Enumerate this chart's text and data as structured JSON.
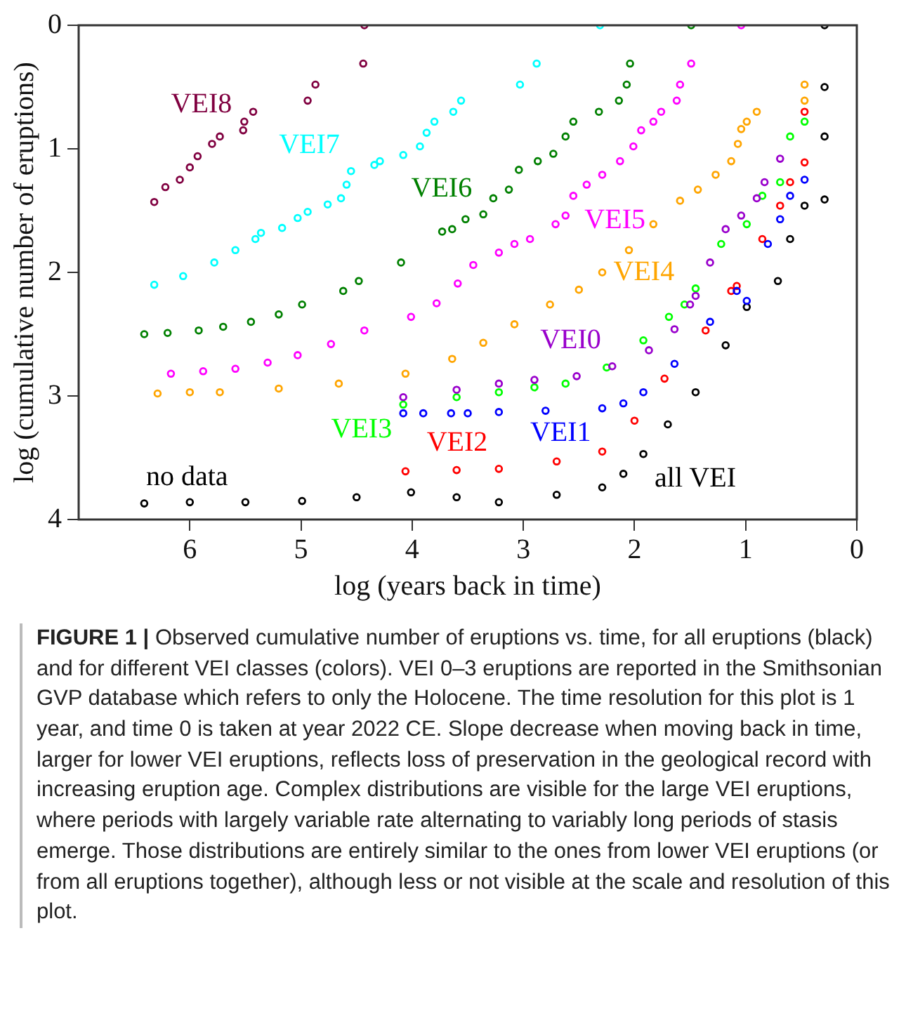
{
  "chart_data": {
    "type": "scatter",
    "title": "FIGURE 1 |",
    "xlabel": "log (years back in time)",
    "ylabel": "log (cumulative number of eruptions)",
    "xlim": [
      7,
      0
    ],
    "xticks": [
      6,
      5,
      4,
      3,
      2,
      1,
      0
    ],
    "ylim": [
      4,
      0
    ],
    "yticks": [
      0,
      1,
      2,
      3,
      4
    ],
    "grid": false,
    "legend": false,
    "marker": "circle",
    "series": [
      {
        "name": "VEI8",
        "color": "#800040",
        "x": [
          6.32,
          6.22,
          6.09,
          6.0,
          5.93,
          5.8,
          5.73,
          5.52,
          5.51,
          5.43,
          4.94,
          4.87,
          4.44,
          4.43
        ],
        "values": [
          1.43,
          1.31,
          1.25,
          1.15,
          1.06,
          0.96,
          0.9,
          0.85,
          0.78,
          0.7,
          0.61,
          0.48,
          0.31,
          0.0
        ]
      },
      {
        "name": "VEI7",
        "color": "#00ffff",
        "x": [
          6.32,
          6.06,
          5.78,
          5.59,
          5.41,
          5.36,
          5.17,
          5.03,
          4.94,
          4.76,
          4.64,
          4.59,
          4.55,
          4.34,
          4.29,
          4.08,
          3.93,
          3.87,
          3.8,
          3.63,
          3.56,
          3.03,
          2.88,
          2.31
        ],
        "values": [
          2.1,
          2.03,
          1.92,
          1.82,
          1.73,
          1.68,
          1.64,
          1.56,
          1.51,
          1.45,
          1.4,
          1.29,
          1.18,
          1.13,
          1.1,
          1.05,
          0.98,
          0.87,
          0.78,
          0.7,
          0.61,
          0.48,
          0.31,
          0.0
        ]
      },
      {
        "name": "VEI6",
        "color": "#008000",
        "x": [
          6.41,
          6.2,
          5.92,
          5.7,
          5.45,
          5.2,
          4.99,
          4.62,
          4.48,
          4.1,
          3.73,
          3.64,
          3.52,
          3.36,
          3.27,
          3.13,
          3.04,
          2.87,
          2.73,
          2.62,
          2.55,
          2.32,
          2.14,
          2.07,
          2.04,
          1.49
        ],
        "values": [
          2.5,
          2.49,
          2.47,
          2.44,
          2.4,
          2.34,
          2.26,
          2.15,
          2.07,
          1.92,
          1.67,
          1.65,
          1.57,
          1.53,
          1.4,
          1.33,
          1.17,
          1.1,
          1.04,
          0.9,
          0.78,
          0.7,
          0.61,
          0.48,
          0.31,
          0.0
        ]
      },
      {
        "name": "VEI5",
        "color": "#ff00ff",
        "x": [
          6.17,
          5.88,
          5.59,
          5.3,
          5.03,
          4.73,
          4.43,
          4.01,
          3.78,
          3.59,
          3.45,
          3.22,
          3.08,
          2.94,
          2.71,
          2.62,
          2.55,
          2.43,
          2.29,
          2.13,
          2.01,
          1.94,
          1.83,
          1.76,
          1.62,
          1.59,
          1.49,
          1.04
        ],
        "values": [
          2.82,
          2.8,
          2.78,
          2.73,
          2.67,
          2.58,
          2.47,
          2.36,
          2.25,
          2.09,
          1.94,
          1.84,
          1.77,
          1.73,
          1.61,
          1.54,
          1.38,
          1.29,
          1.21,
          1.1,
          0.98,
          0.85,
          0.78,
          0.7,
          0.61,
          0.48,
          0.31,
          0.0
        ]
      },
      {
        "name": "VEI4",
        "color": "#ffa500",
        "x": [
          6.29,
          6.0,
          5.73,
          5.2,
          4.66,
          4.06,
          3.64,
          3.36,
          3.08,
          2.76,
          2.5,
          2.29,
          2.05,
          1.83,
          1.59,
          1.43,
          1.27,
          1.13,
          1.07,
          1.04,
          0.99,
          0.9,
          0.47,
          0.47
        ],
        "values": [
          2.98,
          2.97,
          2.97,
          2.94,
          2.9,
          2.82,
          2.7,
          2.57,
          2.42,
          2.26,
          2.14,
          2.0,
          1.82,
          1.61,
          1.42,
          1.33,
          1.21,
          1.1,
          0.96,
          0.84,
          0.78,
          0.7,
          0.61,
          0.48
        ]
      },
      {
        "name": "VEI0",
        "color": "#9900cc",
        "x": [
          4.08,
          3.6,
          3.22,
          2.9,
          2.52,
          2.2,
          1.87,
          1.64,
          1.5,
          1.45,
          1.32,
          1.18,
          1.04,
          0.9,
          0.83,
          0.69
        ],
        "values": [
          3.01,
          2.95,
          2.9,
          2.87,
          2.84,
          2.76,
          2.63,
          2.46,
          2.26,
          2.19,
          1.92,
          1.65,
          1.54,
          1.4,
          1.27,
          1.08
        ]
      },
      {
        "name": "VEI3",
        "color": "#00ff00",
        "x": [
          4.08,
          3.6,
          3.22,
          2.9,
          2.62,
          2.25,
          1.92,
          1.69,
          1.55,
          1.45,
          1.22,
          0.99,
          0.85,
          0.69,
          0.6,
          0.47
        ],
        "values": [
          3.07,
          3.01,
          2.97,
          2.93,
          2.9,
          2.77,
          2.55,
          2.36,
          2.26,
          2.13,
          1.77,
          1.61,
          1.38,
          1.27,
          0.9,
          0.78
        ]
      },
      {
        "name": "VEI1",
        "color": "#0000ff",
        "x": [
          4.08,
          3.9,
          3.65,
          3.5,
          3.22,
          2.8,
          2.29,
          2.1,
          1.92,
          1.64,
          1.32,
          1.08,
          0.99,
          0.8,
          0.69,
          0.6,
          0.47
        ],
        "values": [
          3.14,
          3.14,
          3.14,
          3.14,
          3.13,
          3.12,
          3.1,
          3.06,
          2.97,
          2.74,
          2.4,
          2.15,
          2.23,
          1.77,
          1.57,
          1.38,
          1.25
        ]
      },
      {
        "name": "VEI2",
        "color": "#ff0000",
        "x": [
          4.06,
          3.6,
          3.22,
          2.7,
          2.29,
          2.0,
          1.73,
          1.36,
          1.13,
          1.08,
          0.85,
          0.69,
          0.6,
          0.47,
          0.47
        ],
        "values": [
          3.61,
          3.6,
          3.59,
          3.53,
          3.45,
          3.2,
          2.86,
          2.47,
          2.15,
          2.11,
          1.73,
          1.46,
          1.27,
          1.11,
          0.7
        ]
      },
      {
        "name": "all VEI",
        "color": "#000000",
        "x": [
          6.41,
          6.0,
          5.5,
          4.99,
          4.5,
          4.01,
          3.6,
          3.22,
          2.7,
          2.29,
          2.1,
          1.92,
          1.7,
          1.45,
          1.18,
          0.99,
          0.71,
          0.6,
          0.47,
          0.29,
          0.29,
          0.29,
          0.29
        ],
        "values": [
          3.87,
          3.86,
          3.86,
          3.85,
          3.82,
          3.78,
          3.82,
          3.86,
          3.8,
          3.74,
          3.63,
          3.47,
          3.23,
          2.97,
          2.59,
          2.28,
          2.07,
          1.73,
          1.46,
          1.41,
          0.9,
          0.5,
          0.0
        ]
      }
    ],
    "annotations": [
      "no data",
      "Observed cumulative number of eruptions vs. time, for all eruptions (black) and for different VEI classes (colors). VEI 0–3 eruptions are reported in the Smithsonian GVP database which refers to only the Holocene. The time resolution for this plot is 1 year, and time 0 is taken at year 2022 CE. Slope decrease when moving back in time, larger for lower VEI eruptions, reflects loss of preservation in the geological record with increasing eruption age. Complex distributions are visible for the large VEI eruptions, where periods with largely variable rate alternating to variably long periods of stasis emerge. Those distributions are entirely similar to the ones from lower VEI eruptions (or from all eruptions together), although less or not visible at the scale and resolution of this plot."
    ]
  }
}
